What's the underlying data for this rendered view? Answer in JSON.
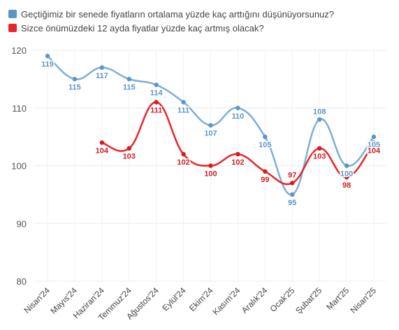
{
  "chart_data": {
    "type": "line",
    "categories": [
      "Nisan'24",
      "Mayıs'24",
      "Haziran'24",
      "Temmuz'24",
      "Ağustos'24",
      "Eylül'24",
      "Ekim'24",
      "Kasım'24",
      "Aralık'24",
      "Ocak'25",
      "Şubat'25",
      "Mart'25",
      "Nisan'25"
    ],
    "ylim": [
      80,
      120
    ],
    "yticks": [
      80,
      90,
      100,
      110,
      120
    ],
    "grid": true,
    "legend_position": "top-left",
    "series": [
      {
        "name": "Geçtiğimiz bir senede fiyatların ortalama yüzde kaç arttığını düşünüyorsunuz?",
        "color": "#7bafd8",
        "label_color": "#5b95c8",
        "values": [
          119,
          115,
          117,
          115,
          114,
          111,
          107,
          110,
          105,
          95,
          108,
          100,
          105
        ],
        "label_pos": [
          "below",
          "below",
          "below",
          "below",
          "below",
          "below",
          "below",
          "below",
          "below",
          "below",
          "above",
          "below",
          "below"
        ]
      },
      {
        "name": "Sizce önümüzdeki 12 ayda fiyatlar yüzde kaç artmış olacak?",
        "color": "#e8262a",
        "label_color": "#d31d22",
        "values": [
          null,
          null,
          104,
          103,
          111,
          102,
          100,
          102,
          99,
          97,
          103,
          98,
          104
        ],
        "label_pos": [
          "below",
          "below",
          "below",
          "below",
          "below",
          "below",
          "below",
          "below",
          "below",
          "above",
          "below",
          "below",
          "below"
        ]
      }
    ]
  }
}
